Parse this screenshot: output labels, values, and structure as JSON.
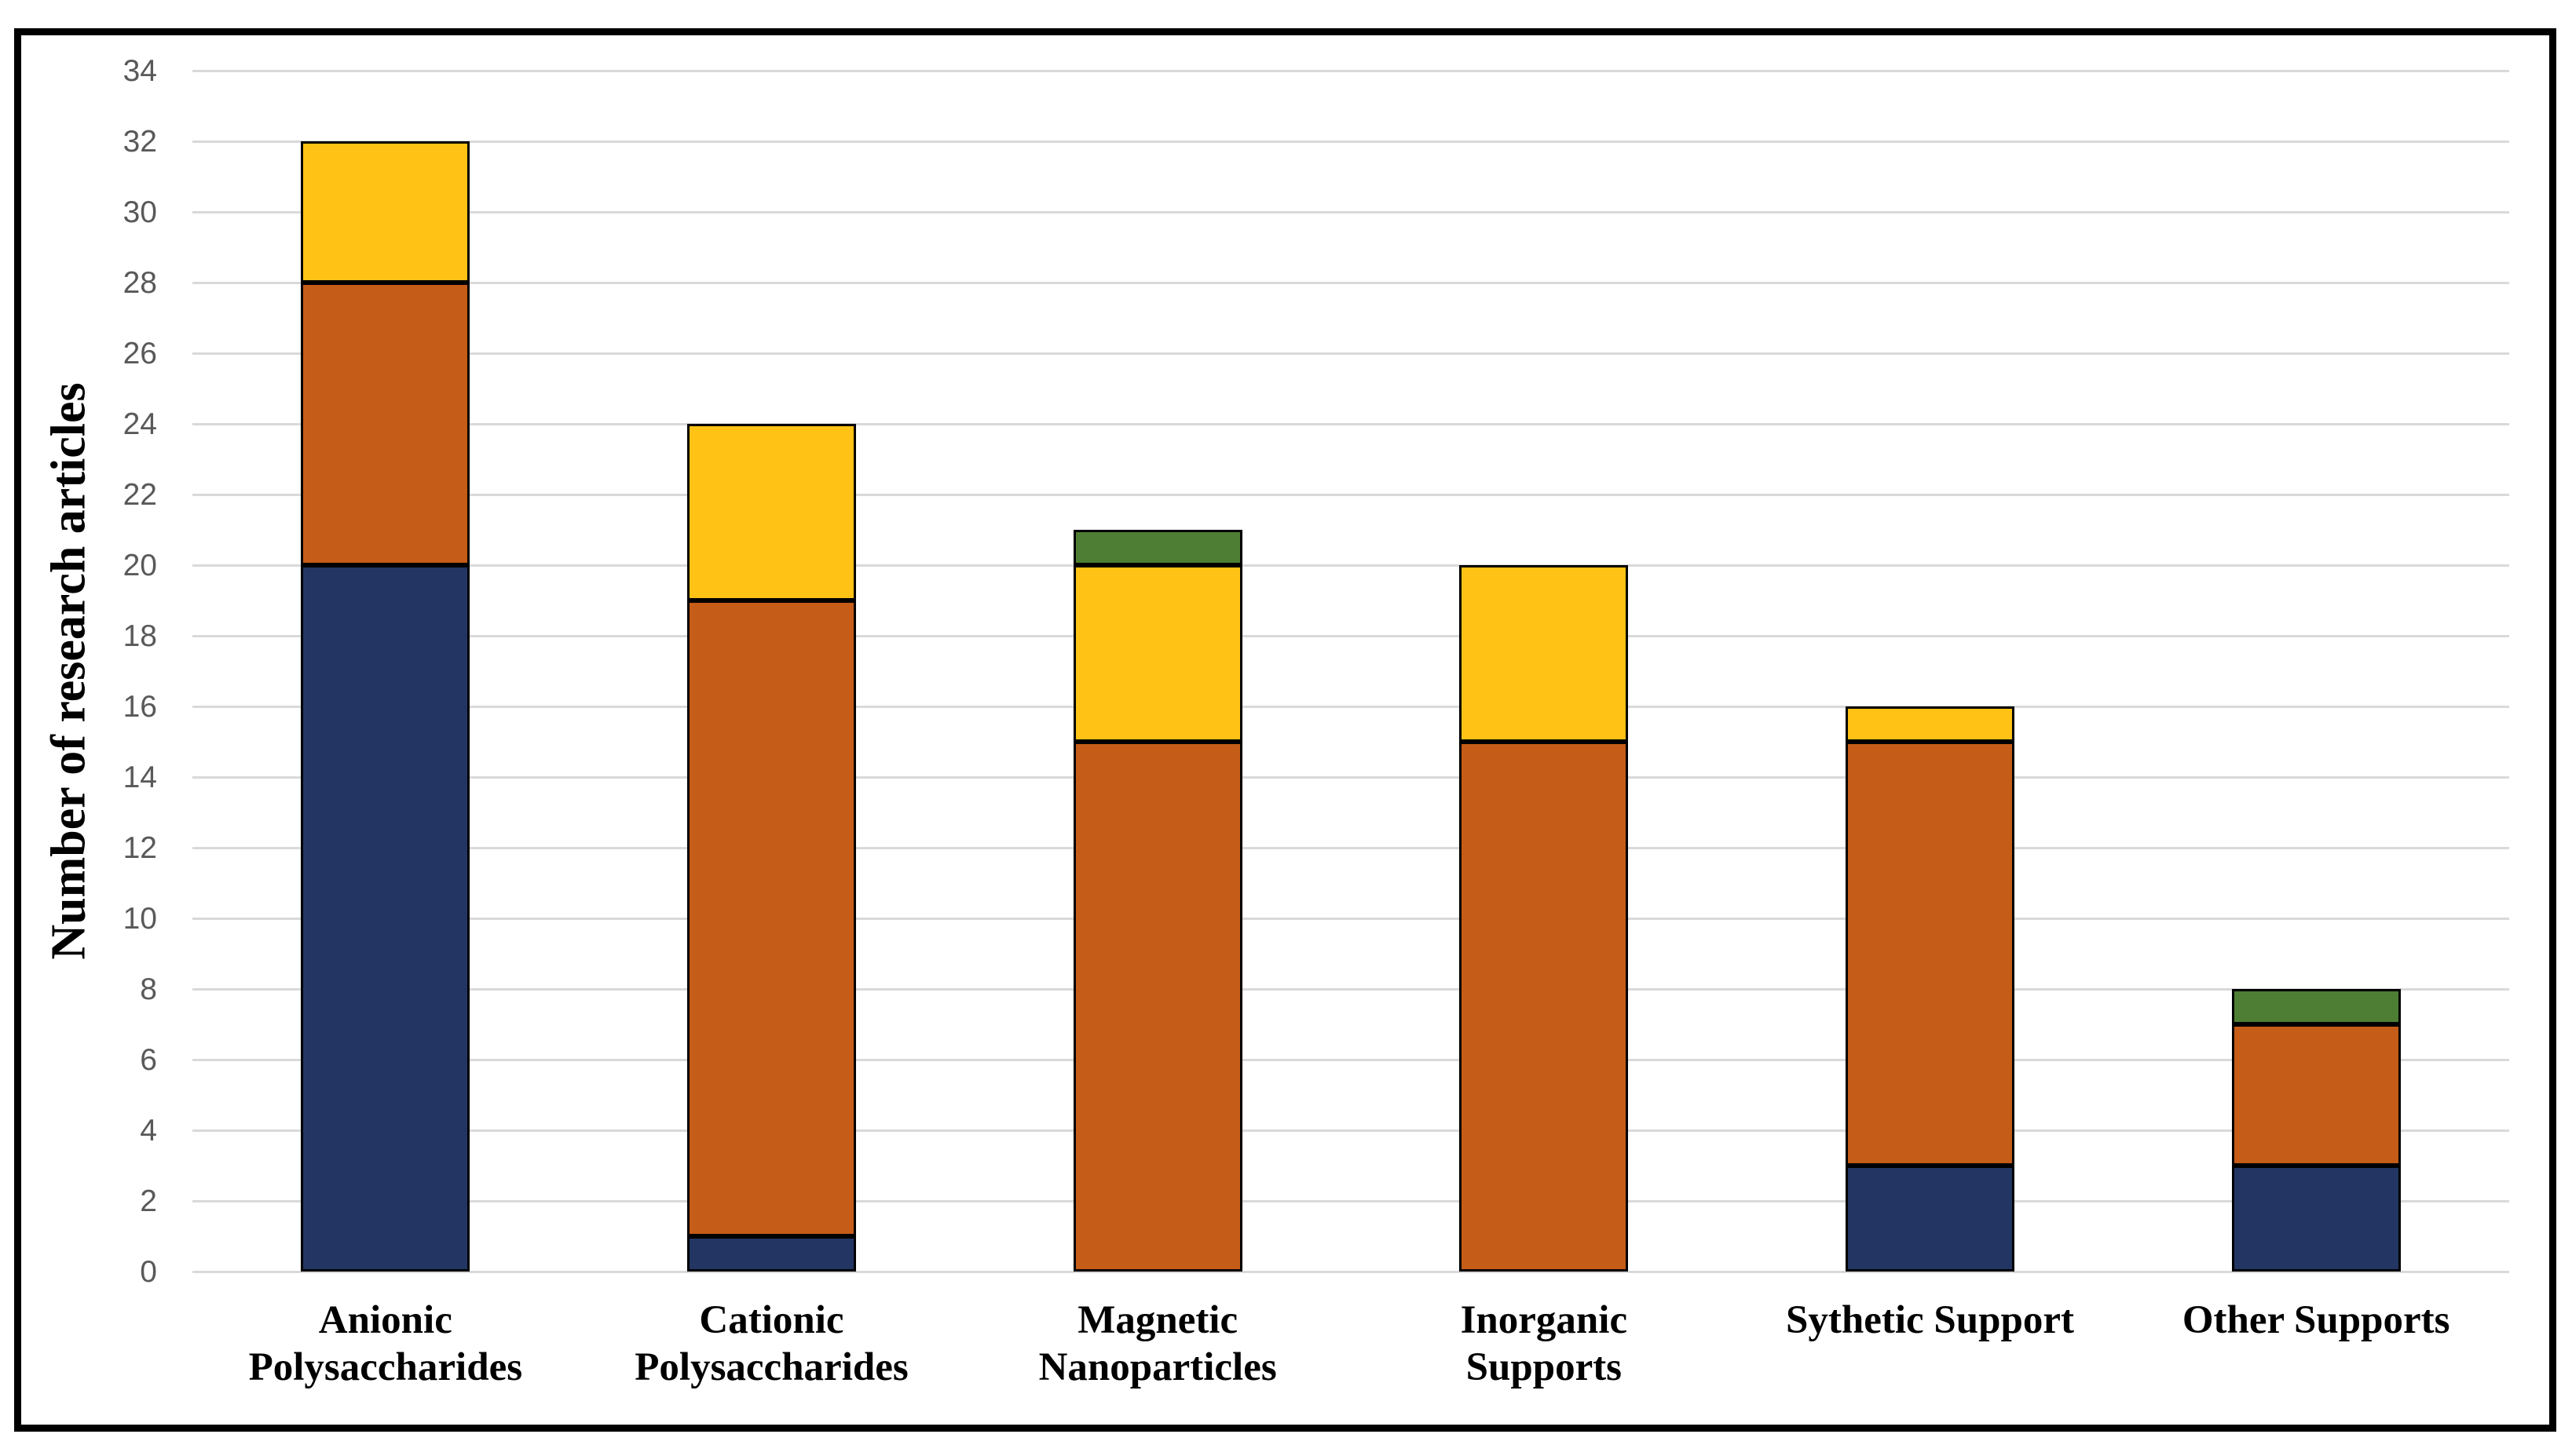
{
  "figure": {
    "background_color": "#ffffff",
    "border_color": "#000000",
    "gridline_color": "#d9d9d9",
    "tick_label_color": "#595959"
  },
  "chart_data": {
    "type": "bar",
    "stacked": true,
    "title": "",
    "xlabel": "",
    "ylabel": "Number of research articles",
    "ylim": [
      0,
      34
    ],
    "ytick_step": 2,
    "grid": true,
    "legend": "none",
    "categories": [
      "Anionic Polysaccharides",
      "Cationic Polysaccharides",
      "Magnetic Nanoparticles",
      "Inorganic Supports",
      "Sythetic Support",
      "Other Supports"
    ],
    "category_label_lines": [
      [
        "Anionic",
        "Polysaccharides"
      ],
      [
        "Cationic",
        "Polysaccharides"
      ],
      [
        "Magnetic",
        "Nanoparticles"
      ],
      [
        "Inorganic",
        "Supports"
      ],
      [
        "Sythetic Support"
      ],
      [
        "Other Supports"
      ]
    ],
    "series": [
      {
        "name": "navy-segment",
        "color": "#233663",
        "values": [
          20,
          1,
          0,
          0,
          3,
          3
        ]
      },
      {
        "name": "orange-segment",
        "color": "#c55c17",
        "values": [
          8,
          18,
          15,
          15,
          12,
          4
        ]
      },
      {
        "name": "yellow-segment",
        "color": "#ffc215",
        "values": [
          4,
          5,
          5,
          5,
          1,
          0
        ]
      },
      {
        "name": "green-segment",
        "color": "#4e7e33",
        "values": [
          0,
          0,
          1,
          0,
          0,
          1
        ]
      }
    ],
    "totals": [
      32,
      24,
      21,
      20,
      16,
      8
    ]
  }
}
